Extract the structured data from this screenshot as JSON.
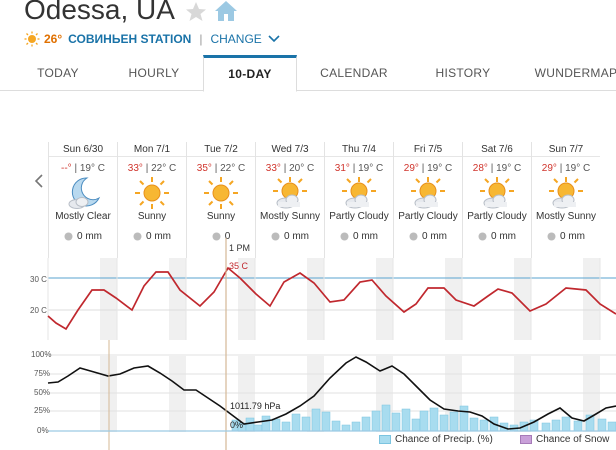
{
  "header": {
    "city": "Odessa, UA",
    "current_temp": "26°",
    "station": "СОВИНЬЕН STATION",
    "separator": "|",
    "change_label": "CHANGE"
  },
  "tabs": [
    {
      "label": "TODAY"
    },
    {
      "label": "HOURLY"
    },
    {
      "label": "10-DAY"
    },
    {
      "label": "CALENDAR"
    },
    {
      "label": "HISTORY"
    },
    {
      "label": "WUNDERMAP"
    }
  ],
  "active_tab": "10-DAY",
  "days": [
    {
      "date": "Sun 6/30",
      "hi": "--°",
      "lo": "19° C",
      "icon": "moon-cloud-icon",
      "cond": "Mostly Clear",
      "precip": "0 mm"
    },
    {
      "date": "Mon 7/1",
      "hi": "33°",
      "lo": "22° C",
      "icon": "sun-icon",
      "cond": "Sunny",
      "precip": "0 mm"
    },
    {
      "date": "Tue 7/2",
      "hi": "35°",
      "lo": "22° C",
      "icon": "sun-icon",
      "cond": "Sunny",
      "precip": "0"
    },
    {
      "date": "Wed 7/3",
      "hi": "33°",
      "lo": "20° C",
      "icon": "sun-cloud-icon",
      "cond": "Mostly Sunny",
      "precip": "0 mm"
    },
    {
      "date": "Thu 7/4",
      "hi": "31°",
      "lo": "19° C",
      "icon": "sun-cloud-icon",
      "cond": "Partly Cloudy",
      "precip": "0 mm"
    },
    {
      "date": "Fri 7/5",
      "hi": "29°",
      "lo": "19° C",
      "icon": "sun-cloud-icon",
      "cond": "Partly Cloudy",
      "precip": "0 mm"
    },
    {
      "date": "Sat 7/6",
      "hi": "28°",
      "lo": "19° C",
      "icon": "sun-cloud-icon",
      "cond": "Partly Cloudy",
      "precip": "0 mm"
    },
    {
      "date": "Sun 7/7",
      "hi": "29°",
      "lo": "19° C",
      "icon": "sun-cloud-icon",
      "cond": "Mostly Sunny",
      "precip": "0 mm"
    }
  ],
  "temp_chart": {
    "y_labels": [
      "30 C",
      "20 C"
    ],
    "cursor_time": "1 PM",
    "cursor_value": "35 C",
    "line_color": "#c0282e"
  },
  "precip_chart": {
    "y_labels": [
      "100%",
      "75%",
      "50%",
      "25%",
      "0%"
    ],
    "pressure_label": "1011.79 hPa",
    "zero_label": "0%",
    "legend_precip": "Chance of Precip. (%)",
    "legend_snow": "Chance of Snow",
    "precip_color": "#a8dcef",
    "snow_color": "#c9a0d9"
  },
  "colors": {
    "accent": "#1a73a8",
    "hi_temp": "#d0342c",
    "current_temp": "#e07000"
  }
}
